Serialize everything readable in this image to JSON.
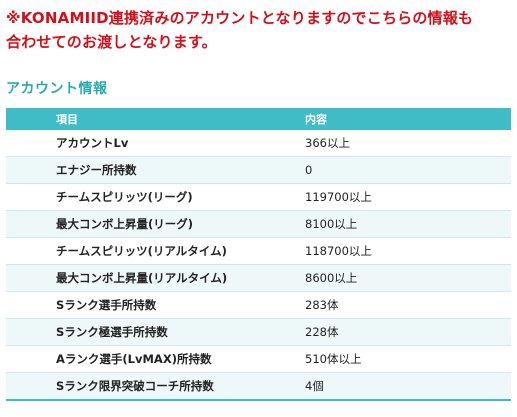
{
  "notice": {
    "line1": "※KONAMIID連携済みのアカウントとなりますのでこちらの情報も",
    "line2": "合わせてのお渡しとなります。"
  },
  "section_title": "アカウント情報",
  "table": {
    "headers": [
      "項目",
      "内容"
    ],
    "rows": [
      {
        "item": "アカウントLv",
        "value": "366以上"
      },
      {
        "item": "エナジー所持数",
        "value": "0"
      },
      {
        "item": "チームスピリッツ(リーグ)",
        "value": "119700以上"
      },
      {
        "item": "最大コンボ上昇量(リーグ)",
        "value": "8100以上"
      },
      {
        "item": "チームスピリッツ(リアルタイム)",
        "value": "118700以上"
      },
      {
        "item": "最大コンボ上昇量(リアルタイム)",
        "value": "8600以上"
      },
      {
        "item": "Sランク選手所持数",
        "value": "283体"
      },
      {
        "item": "Sランク極選手所持数",
        "value": "228体"
      },
      {
        "item": "Aランク選手(LvMAX)所持数",
        "value": "510体以上"
      },
      {
        "item": "Sランク限界突破コーチ所持数",
        "value": "4個"
      }
    ]
  }
}
